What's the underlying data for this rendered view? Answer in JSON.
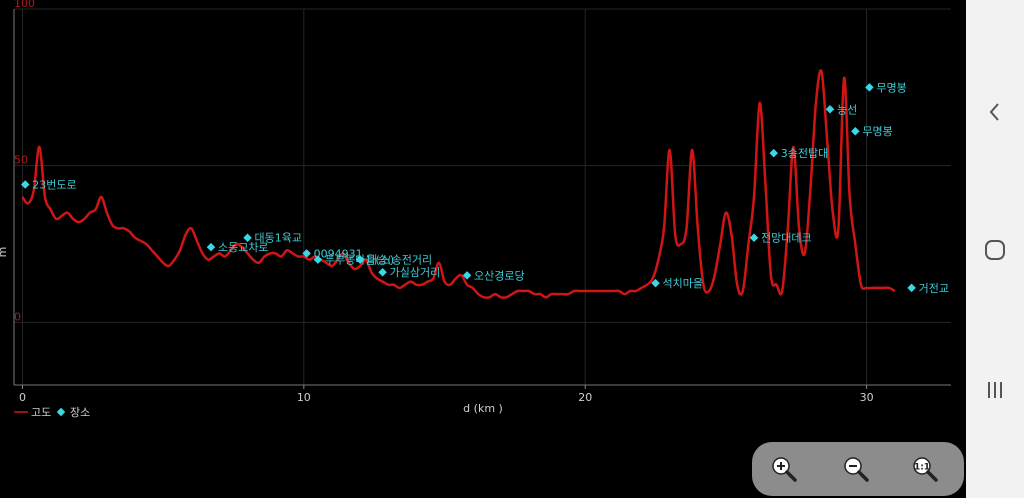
{
  "chart_data": {
    "type": "line",
    "xlabel": "d (km )",
    "ylabel": "m",
    "xlim": [
      -0.3,
      33.0
    ],
    "ylim": [
      -20,
      100
    ],
    "x_ticks": [
      0,
      10,
      20,
      30
    ],
    "y_ticks": [
      0,
      50,
      100
    ],
    "grid": true,
    "legend_position": "bottom-left",
    "series": [
      {
        "name": "고도",
        "color": "#d01515",
        "x": [
          0.0,
          0.2,
          0.4,
          0.6,
          0.8,
          1.0,
          1.2,
          1.4,
          1.6,
          1.8,
          2.0,
          2.2,
          2.4,
          2.6,
          2.8,
          3.0,
          3.2,
          3.4,
          3.6,
          3.8,
          4.0,
          4.2,
          4.4,
          4.6,
          4.8,
          5.0,
          5.2,
          5.4,
          5.6,
          5.8,
          6.0,
          6.2,
          6.4,
          6.6,
          6.8,
          7.0,
          7.2,
          7.4,
          7.6,
          7.8,
          8.0,
          8.2,
          8.4,
          8.6,
          8.8,
          9.0,
          9.2,
          9.4,
          9.6,
          9.8,
          10.0,
          10.2,
          10.4,
          10.6,
          10.8,
          11.0,
          11.2,
          11.4,
          11.6,
          11.8,
          12.0,
          12.2,
          12.4,
          12.6,
          12.8,
          13.0,
          13.2,
          13.4,
          13.6,
          13.8,
          14.0,
          14.2,
          14.4,
          14.6,
          14.8,
          15.0,
          15.2,
          15.4,
          15.6,
          15.8,
          16.0,
          16.2,
          16.4,
          16.6,
          16.8,
          17.0,
          17.2,
          17.4,
          17.6,
          17.8,
          18.0,
          18.2,
          18.4,
          18.6,
          18.8,
          19.0,
          19.2,
          19.4,
          19.6,
          19.8,
          20.0,
          20.2,
          20.4,
          20.6,
          20.8,
          21.0,
          21.2,
          21.4,
          21.6,
          21.8,
          22.0,
          22.2,
          22.4,
          22.6,
          22.8,
          23.0,
          23.2,
          23.4,
          23.6,
          23.8,
          24.0,
          24.2,
          24.4,
          24.6,
          24.8,
          25.0,
          25.2,
          25.4,
          25.6,
          25.8,
          26.0,
          26.2,
          26.4,
          26.6,
          26.8,
          27.0,
          27.2,
          27.4,
          27.6,
          27.8,
          28.0,
          28.2,
          28.4,
          28.6,
          28.8,
          29.0,
          29.2,
          29.4,
          29.6,
          29.8,
          30.0,
          30.2,
          30.4,
          30.6,
          30.8,
          31.0
        ],
        "values": [
          40,
          38,
          42,
          56,
          40,
          36,
          33,
          34,
          35,
          33,
          32,
          33,
          35,
          36,
          40,
          35,
          31,
          30,
          30,
          29,
          27,
          26,
          25,
          23,
          21,
          19,
          18,
          20,
          23,
          28,
          30,
          26,
          22,
          20,
          21,
          22,
          21,
          23,
          25,
          24,
          22,
          20,
          19,
          21,
          22,
          22,
          21,
          23,
          22,
          21,
          21,
          20,
          21,
          20,
          19,
          18,
          20,
          22,
          19,
          17,
          18,
          20,
          16,
          14,
          13,
          12,
          12,
          11,
          12,
          13,
          12,
          12,
          13,
          14,
          19,
          13,
          12,
          14,
          15,
          12,
          11,
          9,
          8,
          8,
          9,
          8,
          8,
          9,
          10,
          10,
          10,
          9,
          9,
          8,
          9,
          9,
          9,
          9,
          10,
          10,
          10,
          10,
          10,
          10,
          10,
          10,
          10,
          9,
          10,
          10,
          11,
          12,
          14,
          20,
          30,
          55,
          28,
          25,
          30,
          55,
          30,
          12,
          10,
          15,
          25,
          35,
          28,
          12,
          10,
          25,
          40,
          70,
          45,
          15,
          12,
          10,
          30,
          56,
          30,
          22,
          42,
          70,
          80,
          58,
          35,
          30,
          78,
          40,
          25,
          12,
          11,
          11,
          11,
          11,
          11,
          10
        ]
      }
    ],
    "places": [
      {
        "name": "23번도로",
        "x": 0.1,
        "y": 44
      },
      {
        "name": "소동교차로",
        "x": 6.7,
        "y": 24
      },
      {
        "name": "대동1육교",
        "x": 8.0,
        "y": 27
      },
      {
        "name": "0094931",
        "x": 10.1,
        "y": 22
      },
      {
        "name": "두부동마을(소)",
        "x": 10.5,
        "y": 20
      },
      {
        "name": "대승(송전거리",
        "x": 12.0,
        "y": 20
      },
      {
        "name": "가실삼거리",
        "x": 12.8,
        "y": 16
      },
      {
        "name": "오산경로당",
        "x": 15.8,
        "y": 15
      },
      {
        "name": "석치마을",
        "x": 22.5,
        "y": 12.5
      },
      {
        "name": "전망대데크",
        "x": 26.0,
        "y": 27
      },
      {
        "name": "3송전탑대",
        "x": 26.7,
        "y": 54
      },
      {
        "name": "능선",
        "x": 28.7,
        "y": 68
      },
      {
        "name": "무명봉",
        "x": 29.6,
        "y": 61
      },
      {
        "name": "무명봉",
        "x": 30.1,
        "y": 75
      },
      {
        "name": "거전교",
        "x": 31.6,
        "y": 11
      }
    ],
    "legend": [
      {
        "label": "고도",
        "kind": "line",
        "color": "#d01515"
      },
      {
        "label": "장소",
        "kind": "marker",
        "color": "#3ad8e6"
      }
    ]
  },
  "zoom_controls": {
    "zoom_in_icon": "zoom-in-icon",
    "zoom_out_icon": "zoom-out-icon",
    "zoom_reset_icon": "zoom-reset-icon"
  },
  "navigation_bar": {
    "back_icon": "back-icon",
    "home_icon": "home-icon",
    "recents_icon": "recents-icon"
  }
}
